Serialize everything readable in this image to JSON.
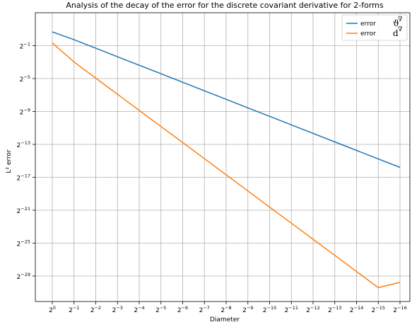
{
  "chart_data": {
    "type": "line",
    "title": "Analysis of the  decay of the error for the  discrete covariant derivative for 2-forms",
    "xlabel": "Diameter",
    "ylabel": "L² error",
    "x": [
      0,
      -1,
      -2,
      -3,
      -4,
      -5,
      -6,
      -7,
      -8,
      -9,
      -10,
      -11,
      -12,
      -13,
      -14,
      -15,
      -16
    ],
    "x_tick_base": "2",
    "x_tick_exponents": [
      "0",
      "−1",
      "−2",
      "−3",
      "−4",
      "−5",
      "−6",
      "−7",
      "−8",
      "−9",
      "−10",
      "−11",
      "−12",
      "−13",
      "−14",
      "−15",
      "−16"
    ],
    "y_tick_base": "2",
    "y_tick_exponents": [
      "−1",
      "−5",
      "−9",
      "−13",
      "−17",
      "−21",
      "−25",
      "−29"
    ],
    "y_tick_values": [
      -1,
      -5,
      -9,
      -13,
      -17,
      -21,
      -25,
      -29
    ],
    "x_scale": "log2",
    "y_scale": "log2",
    "ylim_log2": [
      -32.1,
      3.0
    ],
    "grid": true,
    "legend_position": "top-right",
    "series": [
      {
        "name_text": "error",
        "name_symbol": "ϑ",
        "name_sup": "∇",
        "color": "#1f77b4",
        "y_log2": [
          0.67,
          -0.28,
          -1.31,
          -2.35,
          -3.38,
          -4.42,
          -5.45,
          -6.49,
          -7.52,
          -8.56,
          -9.59,
          -10.63,
          -11.66,
          -12.7,
          -13.73,
          -14.77,
          -15.8
        ]
      },
      {
        "name_text": "error",
        "name_symbol": "d",
        "name_sup": "∇",
        "color": "#ff7f0e",
        "y_log2": [
          -0.67,
          -2.99,
          -4.95,
          -6.91,
          -8.87,
          -10.83,
          -12.78,
          -14.74,
          -16.7,
          -18.66,
          -20.62,
          -22.58,
          -24.53,
          -26.49,
          -28.45,
          -30.41,
          -29.77
        ]
      }
    ]
  }
}
